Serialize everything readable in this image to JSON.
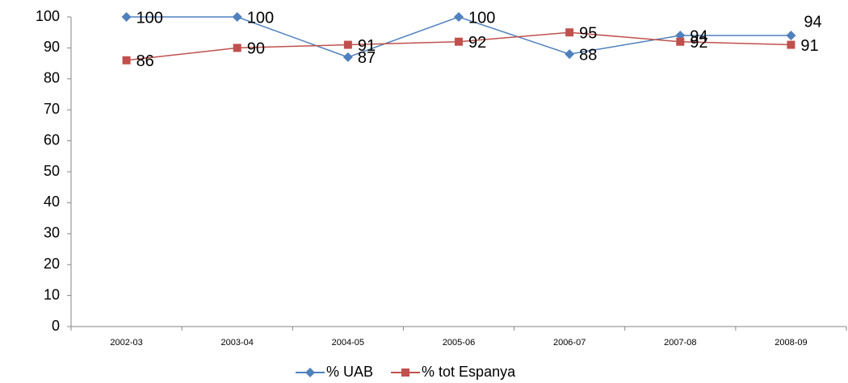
{
  "chart_data": {
    "type": "line",
    "categories": [
      "2002-03",
      "2003-04",
      "2004-05",
      "2005-06",
      "2006-07",
      "2007-08",
      "2008-09"
    ],
    "series": [
      {
        "name": "% UAB",
        "color": "#4f81bd",
        "marker": "diamond",
        "values": [
          100,
          100,
          87,
          100,
          88,
          94,
          94
        ]
      },
      {
        "name": "% tot Espanya",
        "color": "#c0504d",
        "marker": "square",
        "values": [
          86,
          90,
          91,
          92,
          95,
          92,
          91
        ]
      }
    ],
    "ylim": [
      0,
      100
    ],
    "yticks": [
      0,
      10,
      20,
      30,
      40,
      50,
      60,
      70,
      80,
      90,
      100
    ],
    "grid": false,
    "legend": "bottom"
  }
}
